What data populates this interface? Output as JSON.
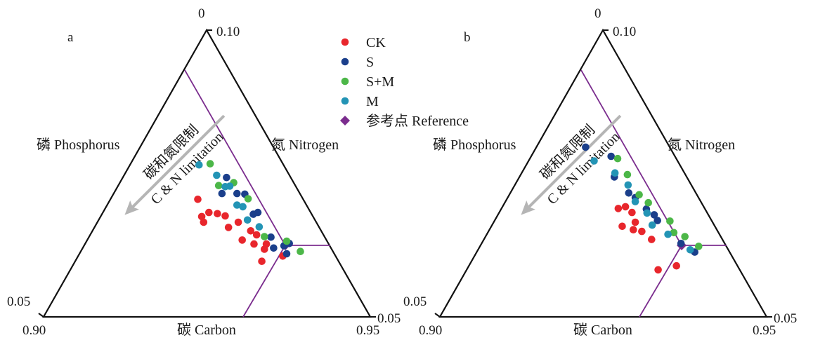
{
  "chart_data": [
    {
      "type": "scatter",
      "subtype": "ternary",
      "panel_label": "a",
      "axes": {
        "carbon": {
          "label": "碳 Carbon",
          "range": [
            0.9,
            0.95
          ]
        },
        "nitrogen": {
          "label": "氮 Nitrogen",
          "range": [
            0.0,
            0.1
          ]
        },
        "phosphorus": {
          "label": "磷 Phosphorus",
          "range": [
            0.0,
            0.05
          ]
        }
      },
      "tick_labels": {
        "top": "0",
        "top_right": "0.10",
        "bottom_left": "0.05",
        "bottom_left_low": "0.90",
        "bottom_right": "0.95",
        "right_end": "0.05"
      },
      "reference": {
        "name": "参考点 Reference",
        "carbon": 0.93,
        "nitrogen": 0.0335,
        "phosphorus": 0.0098
      },
      "annotation": {
        "line1": "碳和氮限制",
        "line2": "C & N limitation"
      },
      "series": [
        {
          "name": "CK",
          "color": "#e8262c",
          "points": [
            [
              0.9236,
              0.0205
            ],
            [
              0.9242,
              0.0175
            ],
            [
              0.9253,
              0.0182
            ],
            [
              0.9245,
              0.0165
            ],
            [
              0.9266,
              0.018
            ],
            [
              0.9278,
              0.0176
            ],
            [
              0.9283,
              0.0156
            ],
            [
              0.9298,
              0.0165
            ],
            [
              0.9304,
              0.0134
            ],
            [
              0.9317,
              0.015
            ],
            [
              0.9322,
              0.0127
            ],
            [
              0.9326,
              0.0143
            ],
            [
              0.9341,
              0.0127
            ],
            [
              0.9338,
              0.0118
            ],
            [
              0.9366,
              0.0106
            ],
            [
              0.9334,
              0.0097
            ]
          ]
        },
        {
          "name": "S",
          "color": "#1b3f8b",
          "points": [
            [
              0.928,
              0.0243
            ],
            [
              0.9273,
              0.0215
            ],
            [
              0.9296,
              0.0215
            ],
            [
              0.9308,
              0.0214
            ],
            [
              0.9321,
              0.0179
            ],
            [
              0.9328,
              0.0182
            ],
            [
              0.9348,
              0.0139
            ],
            [
              0.9368,
              0.0124
            ],
            [
              0.9376,
              0.0128
            ],
            [
              0.9372,
              0.011
            ],
            [
              0.9352,
              0.012
            ]
          ]
        },
        {
          "name": "S+M",
          "color": "#4cb748",
          "points": [
            [
              0.9255,
              0.0267
            ],
            [
              0.9268,
              0.0229
            ],
            [
              0.9291,
              0.0234
            ],
            [
              0.9338,
              0.014
            ],
            [
              0.9372,
              0.0132
            ],
            [
              0.9393,
              0.0114
            ],
            [
              0.9313,
              0.0206
            ]
          ]
        },
        {
          "name": "M",
          "color": "#2394b5",
          "points": [
            [
              0.9238,
              0.0265
            ],
            [
              0.9265,
              0.0247
            ],
            [
              0.9278,
              0.0227
            ],
            [
              0.9296,
              0.0195
            ],
            [
              0.9312,
              0.0169
            ],
            [
              0.9305,
              0.0192
            ],
            [
              0.933,
              0.0157
            ],
            [
              0.9285,
              0.0228
            ]
          ]
        }
      ]
    },
    {
      "type": "scatter",
      "subtype": "ternary",
      "panel_label": "b",
      "axes": {
        "carbon": {
          "label": "碳 Carbon",
          "range": [
            0.9,
            0.95
          ]
        },
        "nitrogen": {
          "label": "氮 Nitrogen",
          "range": [
            0.0,
            0.1
          ]
        },
        "phosphorus": {
          "label": "磷 Phosphorus",
          "range": [
            0.0,
            0.05
          ]
        }
      },
      "tick_labels": {
        "top": "0",
        "top_right": "0.10",
        "bottom_left": "0.05",
        "bottom_left_low": "0.90",
        "bottom_right": "0.95",
        "right_end": "0.05"
      },
      "reference": {
        "name": "参考点 Reference",
        "carbon": 0.93,
        "nitrogen": 0.0335,
        "phosphorus": 0.0098
      },
      "annotation": {
        "line1": "碳和氮限制",
        "line2": "C & N limitation"
      },
      "series": [
        {
          "name": "CK",
          "color": "#e8262c",
          "points": [
            [
              0.9273,
              0.0189
            ],
            [
              0.9284,
              0.0192
            ],
            [
              0.9294,
              0.0182
            ],
            [
              0.9299,
              0.0165
            ],
            [
              0.9279,
              0.0158
            ],
            [
              0.9296,
              0.0152
            ],
            [
              0.9309,
              0.0149
            ],
            [
              0.9324,
              0.0135
            ],
            [
              0.9362,
              0.0089
            ],
            [
              0.9334,
              0.0082
            ]
          ]
        },
        {
          "name": "S",
          "color": "#1b3f8b",
          "points": [
            [
              0.9223,
              0.0296
            ],
            [
              0.9262,
              0.028
            ],
            [
              0.9267,
              0.0244
            ],
            [
              0.9289,
              0.0216
            ],
            [
              0.9299,
              0.0208
            ],
            [
              0.9316,
              0.0188
            ],
            [
              0.9328,
              0.0178
            ],
            [
              0.9333,
              0.0168
            ],
            [
              0.9369,
              0.0128
            ],
            [
              0.939,
              0.0113
            ]
          ]
        },
        {
          "name": "S+M",
          "color": "#4cb748",
          "points": [
            [
              0.9272,
              0.0276
            ],
            [
              0.9287,
              0.0248
            ],
            [
              0.9305,
              0.0213
            ],
            [
              0.9319,
              0.0199
            ],
            [
              0.9352,
              0.0167
            ],
            [
              0.9358,
              0.0147
            ],
            [
              0.9375,
              0.014
            ],
            [
              0.9396,
              0.0123
            ]
          ]
        },
        {
          "name": "M",
          "color": "#2394b5",
          "points": [
            [
              0.9236,
              0.0272
            ],
            [
              0.9268,
              0.0251
            ],
            [
              0.9288,
              0.023
            ],
            [
              0.9299,
              0.0201
            ],
            [
              0.9317,
              0.0181
            ],
            [
              0.9325,
              0.016
            ],
            [
              0.9349,
              0.0144
            ],
            [
              0.9383,
              0.0117
            ]
          ]
        }
      ]
    }
  ],
  "legend": [
    {
      "label": "CK",
      "color": "#e8262c",
      "marker": "circle"
    },
    {
      "label": "S",
      "color": "#1b3f8b",
      "marker": "circle"
    },
    {
      "label": "S+M",
      "color": "#4cb748",
      "marker": "circle"
    },
    {
      "label": "M",
      "color": "#2394b5",
      "marker": "circle"
    },
    {
      "label": "参考点 Reference",
      "color": "#7b2d8e",
      "marker": "diamond"
    }
  ],
  "colors": {
    "frame": "#111111",
    "reference_line": "#7b2d8e",
    "arrow": "#b5b5b5"
  }
}
